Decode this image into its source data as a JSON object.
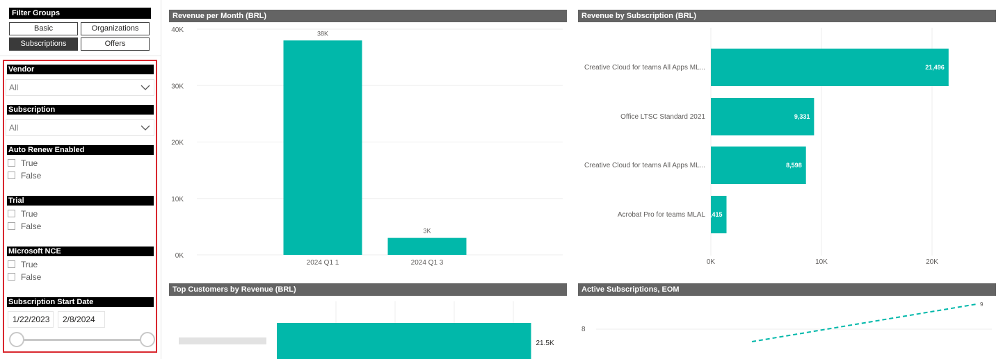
{
  "filter_groups": {
    "title": "Filter Groups",
    "buttons": [
      {
        "label": "Basic",
        "active": false
      },
      {
        "label": "Organizations",
        "active": false
      },
      {
        "label": "Subscriptions",
        "active": true
      },
      {
        "label": "Offers",
        "active": false
      }
    ]
  },
  "filters": {
    "vendor": {
      "label": "Vendor",
      "value": "All"
    },
    "subscription": {
      "label": "Subscription",
      "value": "All"
    },
    "auto_renew": {
      "label": "Auto Renew Enabled",
      "options": [
        "True",
        "False"
      ]
    },
    "trial": {
      "label": "Trial",
      "options": [
        "True",
        "False"
      ]
    },
    "microsoft_nce": {
      "label": "Microsoft NCE",
      "options": [
        "True",
        "False"
      ]
    },
    "start_date": {
      "label": "Subscription Start Date",
      "from": "1/22/2023",
      "to": "2/8/2024"
    }
  },
  "colors": {
    "teal": "#01b8aa",
    "header": "#646464",
    "highlight": "#d9282f"
  },
  "charts": {
    "revenue_per_month": {
      "title": "Revenue per Month (BRL)",
      "y_ticks": [
        "40K",
        "30K",
        "20K",
        "10K",
        "0K"
      ],
      "chart_data": {
        "type": "bar",
        "categories": [
          "2024 Q1 1",
          "2024 Q1 3"
        ],
        "values": [
          38000,
          3000
        ],
        "data_labels": [
          "38K",
          "3K"
        ],
        "ylim": [
          0,
          40000
        ]
      }
    },
    "revenue_by_subscription": {
      "title": "Revenue by Subscription (BRL)",
      "x_ticks": [
        "0K",
        "10K",
        "20K"
      ],
      "chart_data": {
        "type": "bar",
        "orientation": "horizontal",
        "categories": [
          "Creative Cloud for teams All Apps ML...",
          "Office LTSC Standard 2021",
          "Creative Cloud for teams All Apps ML...",
          "Acrobat Pro for teams MLAL"
        ],
        "values": [
          21496,
          9331,
          8598,
          1415
        ],
        "data_labels": [
          "21,496",
          "9,331",
          "8,598",
          "1,415"
        ],
        "xlim": [
          0,
          25000
        ]
      }
    },
    "top_customers": {
      "title": "Top Customers by Revenue (BRL)",
      "chart_data": {
        "type": "bar",
        "orientation": "horizontal",
        "values": [
          21500
        ],
        "data_labels": [
          "21.5K"
        ]
      }
    },
    "active_subscriptions": {
      "title": "Active Subscriptions, EOM",
      "chart_data": {
        "type": "line",
        "y_tick": "8",
        "end_label": "9",
        "values": [
          7.5,
          9
        ]
      }
    }
  }
}
